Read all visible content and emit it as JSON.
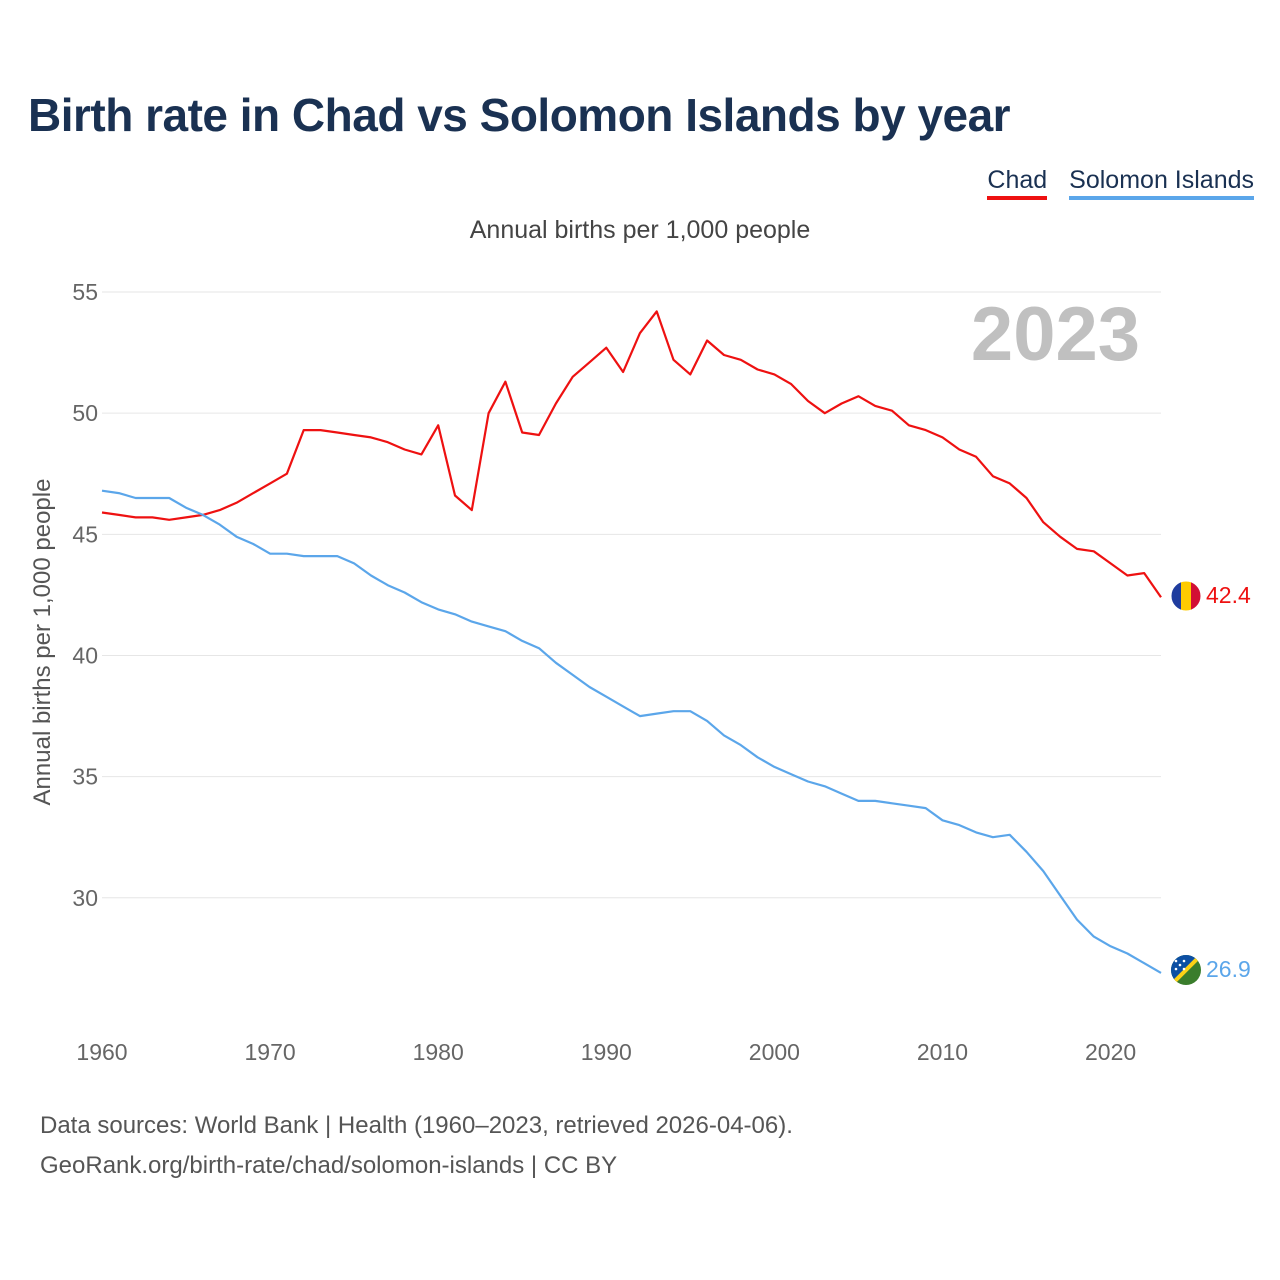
{
  "title": "Birth rate in Chad vs Solomon Islands by year",
  "legend": {
    "chad": "Chad",
    "solomon": "Solomon Islands"
  },
  "subtitle": "Annual births per 1,000 people",
  "footer": {
    "line1": "Data sources: World Bank | Health (1960–2023, retrieved 2026-04-06).",
    "line2": "GeoRank.org/birth-rate/chad/solomon-islands | CC BY"
  },
  "colors": {
    "chad": "#ee1111",
    "solomon": "#5ba6ea",
    "title": "#1a3152",
    "year": "#c0c0c0",
    "grid": "#e6e6e6"
  },
  "chart_data": {
    "type": "line",
    "title": "Birth rate in Chad vs Solomon Islands by year",
    "ylabel": "Annual births per 1,000 people",
    "xlabel": "",
    "year_label": "2023",
    "xlim": [
      1960,
      2023
    ],
    "ylim": [
      25.7,
      55
    ],
    "yticks": [
      30,
      35,
      40,
      45,
      50,
      55
    ],
    "xticks": [
      1960,
      1970,
      1980,
      1990,
      2000,
      2010,
      2020
    ],
    "x": [
      1960,
      1961,
      1962,
      1963,
      1964,
      1965,
      1966,
      1967,
      1968,
      1969,
      1970,
      1971,
      1972,
      1973,
      1974,
      1975,
      1976,
      1977,
      1978,
      1979,
      1980,
      1981,
      1982,
      1983,
      1984,
      1985,
      1986,
      1987,
      1988,
      1989,
      1990,
      1991,
      1992,
      1993,
      1994,
      1995,
      1996,
      1997,
      1998,
      1999,
      2000,
      2001,
      2002,
      2003,
      2004,
      2005,
      2006,
      2007,
      2008,
      2009,
      2010,
      2011,
      2012,
      2013,
      2014,
      2015,
      2016,
      2017,
      2018,
      2019,
      2020,
      2021,
      2022,
      2023
    ],
    "series": [
      {
        "name": "Chad",
        "end_label": "42.4",
        "values": [
          45.9,
          45.8,
          45.7,
          45.7,
          45.6,
          45.7,
          45.8,
          46.0,
          46.3,
          46.7,
          47.1,
          47.5,
          49.3,
          49.3,
          49.2,
          49.1,
          49.0,
          48.8,
          48.5,
          48.3,
          49.5,
          46.6,
          46.0,
          50.0,
          51.3,
          49.2,
          49.1,
          50.4,
          51.5,
          52.1,
          52.7,
          51.7,
          53.3,
          54.2,
          52.2,
          51.6,
          53.0,
          52.4,
          52.2,
          51.8,
          51.6,
          51.2,
          50.5,
          50.0,
          50.4,
          50.7,
          50.3,
          50.1,
          49.5,
          49.3,
          49.0,
          48.5,
          48.2,
          47.4,
          47.1,
          46.5,
          45.5,
          44.9,
          44.4,
          44.3,
          43.8,
          43.3,
          43.4,
          42.4
        ]
      },
      {
        "name": "Solomon Islands",
        "end_label": "26.9",
        "values": [
          46.8,
          46.7,
          46.5,
          46.5,
          46.5,
          46.1,
          45.8,
          45.4,
          44.9,
          44.6,
          44.2,
          44.2,
          44.1,
          44.1,
          44.1,
          43.8,
          43.3,
          42.9,
          42.6,
          42.2,
          41.9,
          41.7,
          41.4,
          41.2,
          41.0,
          40.6,
          40.3,
          39.7,
          39.2,
          38.7,
          38.3,
          37.9,
          37.5,
          37.6,
          37.7,
          37.7,
          37.3,
          36.7,
          36.3,
          35.8,
          35.4,
          35.1,
          34.8,
          34.6,
          34.3,
          34.0,
          34.0,
          33.9,
          33.8,
          33.7,
          33.2,
          33.0,
          32.7,
          32.5,
          32.6,
          31.9,
          31.1,
          30.1,
          29.1,
          28.4,
          28.0,
          27.7,
          27.3,
          26.9
        ]
      }
    ]
  }
}
